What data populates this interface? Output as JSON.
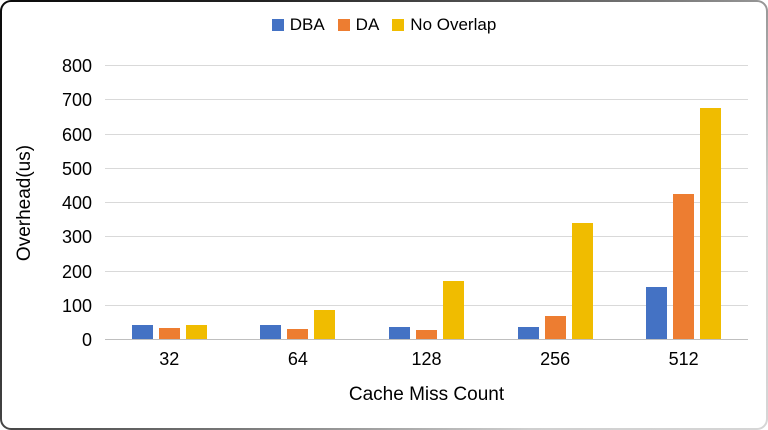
{
  "chart_data": {
    "type": "bar",
    "title": "",
    "categories": [
      "32",
      "64",
      "128",
      "256",
      "512"
    ],
    "series": [
      {
        "name": "DBA",
        "color": "#4472C4",
        "values": [
          40,
          40,
          34,
          35,
          153
        ]
      },
      {
        "name": "DA",
        "color": "#ED7D31",
        "values": [
          32,
          30,
          26,
          68,
          422
        ]
      },
      {
        "name": "No Overlap",
        "color": "#F0BC00",
        "values": [
          41,
          84,
          168,
          338,
          675
        ]
      }
    ],
    "xlabel": "Cache Miss Count",
    "ylabel": "Overhead(us)",
    "ylim": [
      0,
      800
    ],
    "yticks": [
      0,
      100,
      200,
      300,
      400,
      500,
      600,
      700,
      800
    ],
    "grid": true,
    "legend_position": "top"
  },
  "styles": {
    "gridline_color": "#D9D9D9",
    "axisline_color": "#BFBFBF",
    "text_color": "#000000",
    "background": "#FFFFFF"
  }
}
